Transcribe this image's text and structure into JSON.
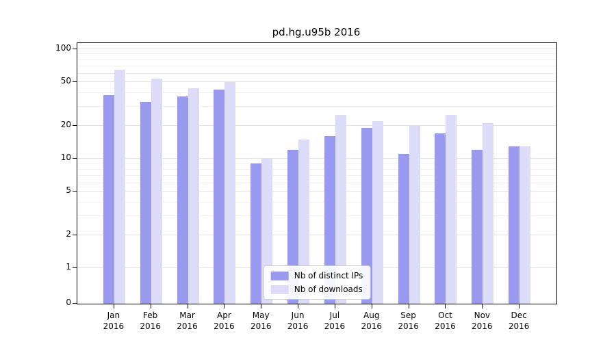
{
  "title": "pd.hg.u95b 2016",
  "axes": {
    "yticks": [
      "100",
      "50",
      "20",
      "10",
      "5",
      "2",
      "1",
      "0"
    ]
  },
  "legend": {
    "items": [
      {
        "label": "Nb of distinct IPs",
        "color": "#9999f0"
      },
      {
        "label": "Nb of downloads",
        "color": "#dcdcf8"
      }
    ]
  },
  "chart_data": {
    "type": "bar",
    "title": "pd.hg.u95b 2016",
    "categories": [
      "Jan 2016",
      "Feb 2016",
      "Mar 2016",
      "Apr 2016",
      "May 2016",
      "Jun 2016",
      "Jul 2016",
      "Aug 2016",
      "Sep 2016",
      "Oct 2016",
      "Nov 2016",
      "Dec 2016"
    ],
    "series": [
      {
        "name": "Nb of distinct IPs",
        "color": "#9999f0",
        "values": [
          38,
          33,
          37,
          43,
          9,
          12,
          16,
          19,
          11,
          17,
          12,
          13
        ]
      },
      {
        "name": "Nb of downloads",
        "color": "#dcdcf8",
        "values": [
          65,
          54,
          44,
          50,
          10,
          15,
          25,
          22,
          20,
          25,
          21,
          13
        ]
      }
    ],
    "xlabel": "",
    "ylabel": "",
    "yscale": "symlog",
    "yticks": [
      100,
      50,
      20,
      10,
      5,
      2,
      1,
      0
    ],
    "ylim": [
      0,
      115
    ],
    "grid": true,
    "legend_position": "lower center"
  }
}
